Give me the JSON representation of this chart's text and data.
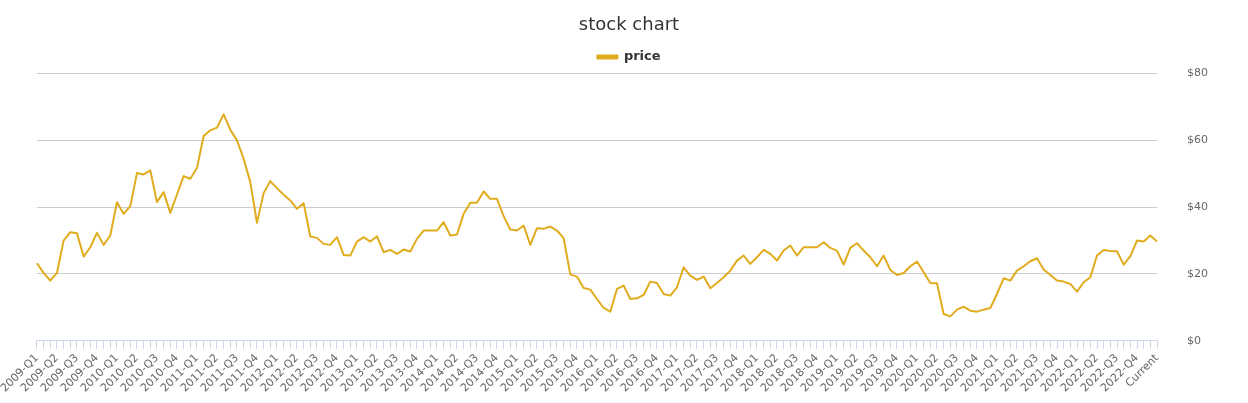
{
  "chart_data": {
    "type": "line",
    "title": "stock chart",
    "categories": [
      "2009-Q1",
      null,
      null,
      "2009-Q2",
      null,
      null,
      "2009-Q3",
      null,
      null,
      "2009-Q4",
      null,
      null,
      "2010-Q1",
      null,
      null,
      "2010-Q2",
      null,
      null,
      "2010-Q3",
      null,
      null,
      "2010-Q4",
      null,
      null,
      "2011-Q1",
      null,
      null,
      "2011-Q2",
      null,
      null,
      "2011-Q3",
      null,
      null,
      "2011-Q4",
      null,
      null,
      "2012-Q1",
      null,
      null,
      "2012-Q2",
      null,
      null,
      "2012-Q3",
      null,
      null,
      "2012-Q4",
      null,
      null,
      "2013-Q1",
      null,
      null,
      "2013-Q2",
      null,
      null,
      "2013-Q3",
      null,
      null,
      "2013-Q4",
      null,
      null,
      "2014-Q1",
      null,
      null,
      "2014-Q2",
      null,
      null,
      "2014-Q3",
      null,
      null,
      "2014-Q4",
      null,
      null,
      "2015-Q1",
      null,
      null,
      "2015-Q2",
      null,
      null,
      "2015-Q3",
      null,
      null,
      "2015-Q4",
      null,
      null,
      "2016-Q1",
      null,
      null,
      "2016-Q2",
      null,
      null,
      "2016-Q3",
      null,
      null,
      "2016-Q4",
      null,
      null,
      "2017-Q1",
      null,
      null,
      "2017-Q2",
      null,
      null,
      "2017-Q3",
      null,
      null,
      "2017-Q4",
      null,
      null,
      "2018-Q1",
      null,
      null,
      "2018-Q2",
      null,
      null,
      "2018-Q3",
      null,
      null,
      "2018-Q4",
      null,
      null,
      "2019-Q1",
      null,
      null,
      "2019-Q2",
      null,
      null,
      "2019-Q3",
      null,
      null,
      "2019-Q4",
      null,
      null,
      "2020-Q1",
      null,
      null,
      "2020-Q2",
      null,
      null,
      "2020-Q3",
      null,
      null,
      "2020-Q4",
      null,
      null,
      "2021-Q1",
      null,
      null,
      "2021-Q2",
      null,
      null,
      "2021-Q3",
      null,
      null,
      "2021-Q4",
      null,
      null,
      "2022-Q1",
      null,
      null,
      "2022-Q2",
      null,
      null,
      "2022-Q3",
      null,
      null,
      "2022-Q4",
      null,
      null,
      "Current"
    ],
    "series": [
      {
        "name": "price",
        "color": "#e0ac1e",
        "values": [
          23.2,
          20.3,
          18,
          20.3,
          30,
          32.5,
          32.2,
          25.2,
          28,
          32.3,
          28.7,
          31.5,
          41.5,
          38,
          40.3,
          50.2,
          49.8,
          51,
          41.5,
          44.5,
          38.3,
          43.8,
          49.3,
          48.5,
          51.7,
          61.3,
          63,
          63.8,
          67.8,
          63.2,
          60,
          54.5,
          47.5,
          35.3,
          44.2,
          47.8,
          45.7,
          43.7,
          42,
          39.5,
          41.2,
          31.2,
          30.8,
          29,
          28.7,
          31,
          25.7,
          25.5,
          29.7,
          31,
          29.7,
          31.3,
          26.5,
          27.2,
          26,
          27.3,
          26.7,
          30.5,
          33,
          33,
          33,
          35.5,
          31.5,
          31.8,
          38,
          41.3,
          41.3,
          44.7,
          42.5,
          42.5,
          37.3,
          33.3,
          33,
          34.5,
          28.7,
          33.7,
          33.5,
          34.2,
          33,
          30.7,
          19.8,
          19.2,
          15.8,
          15.3,
          12.5,
          9.8,
          8.7,
          15.5,
          16.5,
          12.5,
          12.7,
          13.7,
          17.7,
          17.3,
          14,
          13.5,
          16,
          22,
          19.5,
          18.2,
          19.2,
          15.7,
          17.3,
          19,
          21,
          24,
          25.5,
          23,
          25,
          27.2,
          26,
          24,
          27,
          28.5,
          25.5,
          28,
          28,
          28,
          29.5,
          27.8,
          27,
          22.8,
          27.8,
          29.2,
          27,
          25,
          22.3,
          25.5,
          21.2,
          19.7,
          20.3,
          22.3,
          23.7,
          20.5,
          17.3,
          17.2,
          8,
          7.3,
          9.3,
          10.2,
          9,
          8.7,
          9.3,
          9.8,
          14,
          18.7,
          18,
          21,
          22.3,
          23.8,
          24.7,
          21.3,
          19.7,
          18,
          17.7,
          17,
          14.7,
          17.5,
          19,
          25.5,
          27.2,
          26.9,
          26.8,
          22.8,
          25.3,
          30,
          29.7,
          31.5,
          29.7
        ]
      }
    ],
    "ylim": [
      0,
      80
    ],
    "yticks": [
      {
        "value": 0,
        "label": "$0"
      },
      {
        "value": 20,
        "label": "$20"
      },
      {
        "value": 40,
        "label": "$40"
      },
      {
        "value": 60,
        "label": "$60"
      },
      {
        "value": 80,
        "label": "$80"
      }
    ],
    "grid": "y",
    "legend": "top",
    "marker": "none",
    "line_style": "solid"
  }
}
